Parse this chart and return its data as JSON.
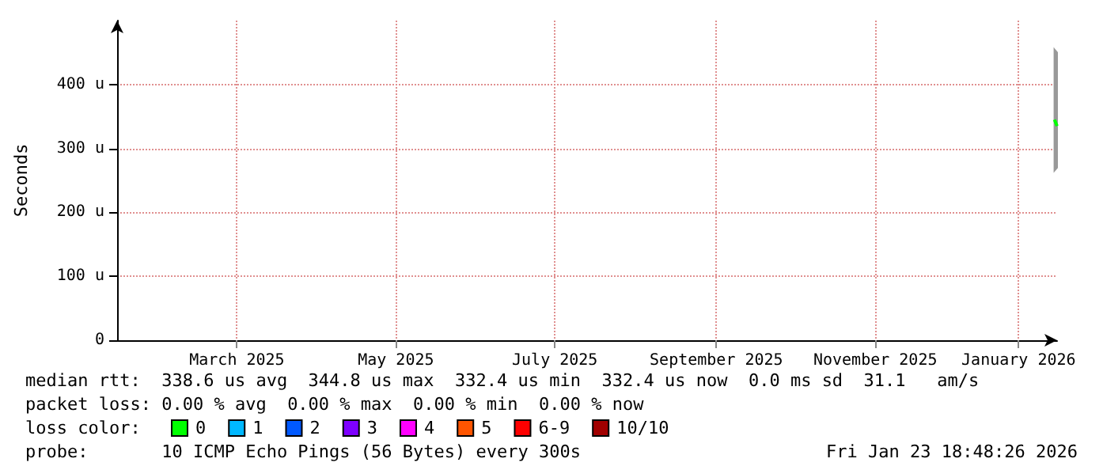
{
  "chart_data": {
    "type": "line",
    "ylabel": "Seconds",
    "legend_title": "loss color:",
    "legend": "bottom left",
    "grid": true,
    "marker": "none",
    "xlim": [
      "2025-01-28",
      "2026-01-23T18:48"
    ],
    "xticks": [
      {
        "value": "2025-03-15",
        "label": "March 2025"
      },
      {
        "value": "2025-05-15",
        "label": "May 2025"
      },
      {
        "value": "2025-07-15",
        "label": "July 2025"
      },
      {
        "value": "2025-09-15",
        "label": "September 2025"
      },
      {
        "value": "2025-11-15",
        "label": "November 2025"
      },
      {
        "value": "2026-01-09",
        "label": "January 2026"
      }
    ],
    "ylim": [
      0,
      500
    ],
    "yticks": [
      0,
      {
        "value": 100,
        "label": "100 u"
      },
      {
        "value": 200,
        "label": "200 u"
      },
      {
        "value": 300,
        "label": "300 u"
      },
      {
        "value": 400,
        "label": "400 u"
      }
    ],
    "series": [
      {
        "name": "0",
        "color": "#00ff00",
        "x": [
          "2026-01-22T18:00",
          "2026-01-23T18:48"
        ],
        "values": [
          345,
          335
        ],
        "lower": [
          265,
          270
        ],
        "upper": [
          455,
          450
        ]
      },
      {
        "name": "1",
        "color": "#00b8ff"
      },
      {
        "name": "2",
        "color": "#0059ff"
      },
      {
        "name": "3",
        "color": "#7e00ff"
      },
      {
        "name": "4",
        "color": "#ff00ff"
      },
      {
        "name": "5",
        "color": "#ff5500"
      },
      {
        "name": "6-9",
        "color": "#ff0000"
      },
      {
        "name": "10/10",
        "color": "#a10000"
      }
    ],
    "annotations": [
      "median rtt:  338.6 us avg  344.8 us max  332.4 us min  332.4 us now  0.0 ms sd  31.1   am/s",
      "packet loss: 0.00 % avg  0.00 % max  0.00 % min  0.00 % now",
      "probe:       10 ICMP Echo Pings (56 Bytes) every 300s",
      "Fri Jan 23 18:48:26 2026"
    ]
  }
}
